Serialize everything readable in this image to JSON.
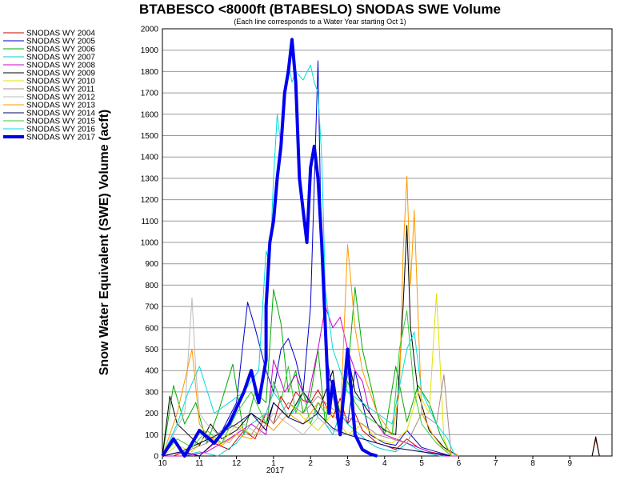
{
  "chart_data": {
    "type": "line",
    "title": "BTABESCO <8000ft (BTABESLO) SNODAS SWE Volume",
    "subtitle": "(Each line corresponds to a Water Year starting Oct 1)",
    "ylabel": "Snow Water Equivalent (SWE) Volume (acft)",
    "xlabel": "",
    "year_label": "2017",
    "ylim": [
      0,
      2000
    ],
    "yticks": [
      "0",
      "100",
      "200",
      "300",
      "400",
      "500",
      "600",
      "700",
      "800",
      "900",
      "1000",
      "1100",
      "1200",
      "1300",
      "1400",
      "1500",
      "1600",
      "1700",
      "1800",
      "1900",
      "2000"
    ],
    "xticks": [
      "10",
      "11",
      "12",
      "1",
      "2",
      "3",
      "4",
      "5",
      "6",
      "7",
      "8",
      "9"
    ],
    "grid": "horizontal",
    "legend_position": "left",
    "series": [
      {
        "name": "SNODAS WY 2004",
        "color": "#cc0000",
        "width": 1,
        "x": [
          10.0,
          10.3,
          10.6,
          11.0,
          11.4,
          11.8,
          12.2,
          12.5,
          12.8,
          1.0,
          1.2,
          1.4,
          1.6,
          1.8,
          2.0,
          2.2,
          2.4,
          2.6,
          2.8,
          3.0,
          3.2,
          3.4,
          3.6,
          3.8,
          4.0,
          4.3,
          4.6,
          4.9,
          5.2,
          5.5,
          5.8,
          6.0,
          9.6,
          9.7,
          9.8
        ],
        "y": [
          0,
          0,
          20,
          0,
          60,
          30,
          120,
          80,
          200,
          150,
          280,
          220,
          300,
          260,
          250,
          310,
          240,
          180,
          270,
          150,
          200,
          120,
          90,
          60,
          50,
          30,
          80,
          40,
          20,
          10,
          0,
          0,
          0,
          80,
          0
        ]
      },
      {
        "name": "SNODAS WY 2005",
        "color": "#0000cc",
        "width": 1,
        "x": [
          10.0,
          10.5,
          11.0,
          11.5,
          12.0,
          12.3,
          12.5,
          12.8,
          1.0,
          1.2,
          1.4,
          1.6,
          1.8,
          2.0,
          2.2,
          2.3,
          2.4,
          2.6,
          2.8,
          3.0,
          3.2,
          3.4,
          3.6,
          3.8,
          4.0,
          4.3,
          4.6,
          5.0,
          5.4,
          5.8
        ],
        "y": [
          0,
          20,
          0,
          80,
          250,
          720,
          600,
          400,
          300,
          500,
          550,
          450,
          300,
          700,
          1850,
          900,
          500,
          300,
          200,
          150,
          400,
          250,
          100,
          80,
          60,
          50,
          120,
          40,
          20,
          0
        ]
      },
      {
        "name": "SNODAS WY 2006",
        "color": "#00aa00",
        "width": 1,
        "x": [
          10.0,
          10.3,
          10.6,
          10.9,
          11.2,
          11.5,
          11.9,
          12.2,
          12.5,
          12.8,
          1.0,
          1.2,
          1.4,
          1.6,
          1.8,
          2.0,
          2.2,
          2.4,
          2.6,
          2.8,
          3.0,
          3.2,
          3.4,
          3.6,
          3.8,
          4.0,
          4.3,
          4.6,
          4.9,
          5.2,
          5.5,
          5.8
        ],
        "y": [
          0,
          330,
          150,
          250,
          60,
          200,
          430,
          100,
          300,
          250,
          780,
          620,
          300,
          400,
          200,
          280,
          500,
          150,
          350,
          200,
          380,
          790,
          500,
          350,
          200,
          100,
          420,
          160,
          330,
          250,
          100,
          0
        ]
      },
      {
        "name": "SNODAS WY 2007",
        "color": "#00cccc",
        "width": 1,
        "x": [
          10.0,
          10.5,
          11.0,
          11.5,
          12.0,
          12.4,
          12.8,
          1.0,
          1.2,
          1.4,
          1.6,
          1.8,
          2.0,
          2.2,
          2.4,
          2.6,
          2.8,
          3.0,
          3.2,
          3.4,
          3.6,
          3.8,
          4.0,
          4.3,
          4.6,
          4.9,
          5.2,
          5.5,
          5.8
        ],
        "y": [
          0,
          0,
          20,
          0,
          60,
          150,
          200,
          300,
          250,
          180,
          220,
          300,
          260,
          180,
          150,
          100,
          200,
          150,
          120,
          90,
          60,
          40,
          30,
          20,
          60,
          30,
          10,
          0,
          0
        ]
      },
      {
        "name": "SNODAS WY 2008",
        "color": "#cc00cc",
        "width": 1,
        "x": [
          10.0,
          10.6,
          11.2,
          11.8,
          12.4,
          12.8,
          1.0,
          1.3,
          1.6,
          1.9,
          2.2,
          2.4,
          2.6,
          2.8,
          3.0,
          3.2,
          3.4,
          3.6,
          3.8,
          4.0,
          4.3,
          4.6,
          4.9,
          5.2,
          5.6,
          6.0
        ],
        "y": [
          0,
          0,
          20,
          80,
          150,
          100,
          450,
          300,
          380,
          250,
          500,
          700,
          600,
          650,
          500,
          400,
          350,
          200,
          150,
          100,
          80,
          60,
          40,
          20,
          0,
          0
        ]
      },
      {
        "name": "SNODAS WY 2009",
        "color": "#000000",
        "width": 1,
        "x": [
          10.0,
          10.2,
          10.4,
          10.7,
          11.0,
          11.3,
          11.6,
          12.0,
          12.4,
          12.8,
          1.0,
          1.4,
          1.8,
          2.2,
          2.6,
          2.8,
          3.0,
          3.2,
          3.4,
          3.6,
          3.8,
          4.0,
          4.3,
          4.5,
          4.6,
          4.7,
          4.9,
          5.2,
          5.6,
          6.0,
          9.6,
          9.7,
          9.8
        ],
        "y": [
          0,
          280,
          150,
          100,
          50,
          150,
          80,
          120,
          200,
          150,
          250,
          180,
          300,
          200,
          400,
          150,
          480,
          300,
          250,
          200,
          150,
          120,
          100,
          700,
          1080,
          600,
          300,
          120,
          40,
          0,
          0,
          90,
          0
        ]
      },
      {
        "name": "SNODAS WY 2010",
        "color": "#e0e000",
        "width": 1,
        "x": [
          10.0,
          10.4,
          10.8,
          11.2,
          11.6,
          12.0,
          12.4,
          12.8,
          1.0,
          1.4,
          1.8,
          2.2,
          2.6,
          3.0,
          3.4,
          3.8,
          4.2,
          4.6,
          4.9,
          5.2,
          5.4,
          5.6,
          5.8
        ],
        "y": [
          0,
          50,
          20,
          100,
          60,
          150,
          100,
          200,
          150,
          250,
          180,
          120,
          200,
          100,
          150,
          80,
          60,
          120,
          300,
          200,
          760,
          80,
          0
        ]
      },
      {
        "name": "SNODAS WY 2011",
        "color": "#aa8888",
        "width": 1,
        "x": [
          10.0,
          10.6,
          11.2,
          11.8,
          12.4,
          12.8,
          1.0,
          1.4,
          1.8,
          2.2,
          2.6,
          3.0,
          3.4,
          3.8,
          4.2,
          4.6,
          5.0,
          5.4,
          5.6,
          5.8
        ],
        "y": [
          0,
          20,
          60,
          150,
          100,
          200,
          150,
          250,
          200,
          280,
          220,
          180,
          150,
          100,
          80,
          60,
          200,
          150,
          380,
          0
        ]
      },
      {
        "name": "SNODAS WY 2012",
        "color": "#bbbbbb",
        "width": 1,
        "x": [
          10.0,
          10.3,
          10.6,
          10.8,
          10.9,
          11.0,
          11.2,
          11.5,
          11.8,
          12.2,
          12.6,
          1.0,
          1.4,
          1.8,
          2.2,
          2.6,
          3.0,
          3.4,
          3.8,
          4.2,
          4.6,
          5.0,
          5.4,
          5.8
        ],
        "y": [
          0,
          100,
          200,
          740,
          400,
          200,
          150,
          100,
          60,
          150,
          100,
          200,
          150,
          100,
          180,
          120,
          100,
          80,
          60,
          40,
          30,
          20,
          10,
          0
        ]
      },
      {
        "name": "SNODAS WY 2013",
        "color": "#ff9900",
        "width": 1,
        "x": [
          10.0,
          10.4,
          10.8,
          11.0,
          11.2,
          11.6,
          12.0,
          12.4,
          12.8,
          1.0,
          1.4,
          1.8,
          2.2,
          2.6,
          2.8,
          3.0,
          3.2,
          3.4,
          3.8,
          4.2,
          4.4,
          4.5,
          4.6,
          4.7,
          4.8,
          5.0,
          5.3,
          5.6,
          6.0
        ],
        "y": [
          0,
          200,
          500,
          150,
          100,
          50,
          100,
          80,
          150,
          120,
          200,
          150,
          250,
          200,
          150,
          990,
          600,
          400,
          200,
          100,
          300,
          950,
          1310,
          800,
          1150,
          200,
          100,
          30,
          0
        ]
      },
      {
        "name": "SNODAS WY 2014",
        "color": "#000066",
        "width": 1,
        "x": [
          10.0,
          10.5,
          11.0,
          11.5,
          12.0,
          12.4,
          12.8,
          1.0,
          1.4,
          1.8,
          2.2,
          2.6,
          3.0,
          3.4,
          3.8,
          4.2,
          4.6,
          5.0,
          5.4,
          5.8
        ],
        "y": [
          0,
          20,
          60,
          100,
          150,
          200,
          120,
          250,
          180,
          150,
          200,
          130,
          100,
          80,
          60,
          40,
          30,
          20,
          10,
          0
        ]
      },
      {
        "name": "SNODAS WY 2015",
        "color": "#33cc33",
        "width": 1,
        "x": [
          10.0,
          10.4,
          10.8,
          11.2,
          11.6,
          12.0,
          12.4,
          12.8,
          1.0,
          1.2,
          1.4,
          1.6,
          1.8,
          2.0,
          2.2,
          2.4,
          2.6,
          2.8,
          3.0,
          3.2,
          3.4,
          3.8,
          4.2,
          4.4,
          4.6,
          4.8,
          5.0,
          5.4,
          5.8
        ],
        "y": [
          0,
          80,
          40,
          120,
          60,
          200,
          300,
          150,
          350,
          250,
          420,
          200,
          300,
          150,
          250,
          200,
          280,
          150,
          350,
          250,
          200,
          150,
          100,
          500,
          680,
          300,
          150,
          60,
          0
        ]
      },
      {
        "name": "SNODAS WY 2016",
        "color": "#00dddd",
        "width": 1,
        "x": [
          10.0,
          10.4,
          10.7,
          11.0,
          11.4,
          11.8,
          12.2,
          12.6,
          12.8,
          0.9,
          1.0,
          1.1,
          1.2,
          1.3,
          1.4,
          1.5,
          1.6,
          1.8,
          2.0,
          2.1,
          2.2,
          2.3,
          2.4,
          2.6,
          3.0,
          3.4,
          3.8,
          4.2,
          4.6,
          4.8,
          5.0,
          5.4,
          5.7,
          5.9
        ],
        "y": [
          0,
          150,
          300,
          420,
          200,
          250,
          300,
          400,
          960,
          900,
          1300,
          1600,
          1450,
          1700,
          1840,
          1750,
          1800,
          1760,
          1830,
          1750,
          1700,
          1400,
          780,
          500,
          300,
          250,
          200,
          150,
          500,
          580,
          300,
          150,
          80,
          0
        ]
      },
      {
        "name": "SNODAS WY 2017",
        "color": "#0000ee",
        "width": 4,
        "x": [
          10.0,
          10.3,
          10.6,
          11.0,
          11.4,
          11.8,
          12.2,
          12.4,
          12.6,
          12.8,
          0.8,
          0.9,
          1.0,
          1.1,
          1.2,
          1.3,
          1.4,
          1.5,
          1.6,
          1.7,
          1.8,
          1.9,
          2.0,
          2.1,
          2.2,
          2.3,
          2.4,
          2.5,
          2.6,
          2.8,
          3.0,
          3.2,
          3.4,
          3.6,
          3.8
        ],
        "y": [
          0,
          80,
          0,
          120,
          60,
          150,
          300,
          400,
          250,
          450,
          700,
          1000,
          1100,
          1300,
          1450,
          1700,
          1800,
          1950,
          1750,
          1300,
          1150,
          1000,
          1350,
          1450,
          1300,
          1000,
          600,
          200,
          350,
          100,
          500,
          100,
          30,
          10,
          0
        ]
      }
    ]
  }
}
